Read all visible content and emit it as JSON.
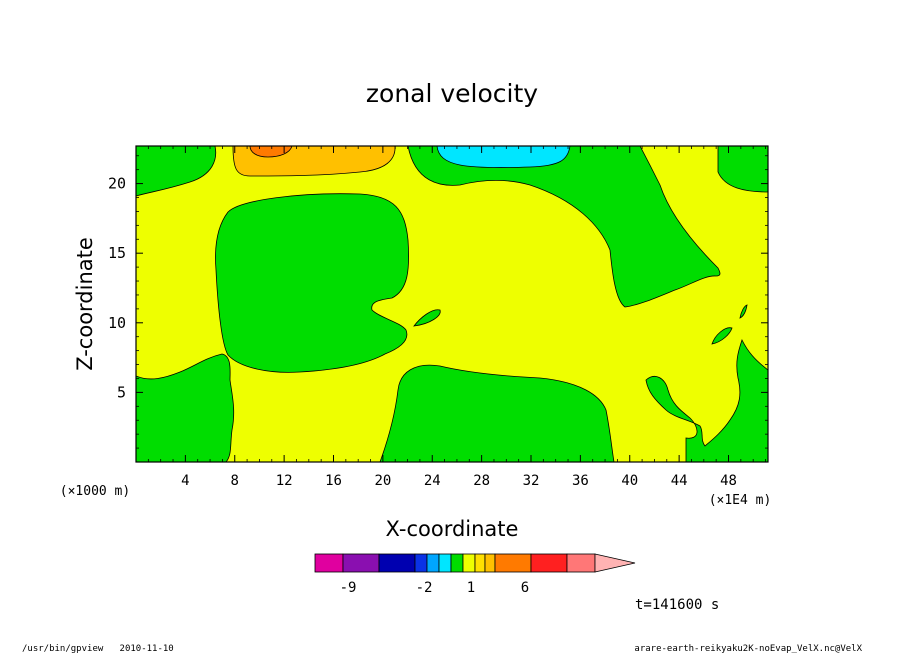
{
  "chart_data": {
    "type": "heatmap",
    "title": "zonal velocity",
    "xlabel": "X-coordinate",
    "ylabel": "Z-coordinate",
    "x_scale_note": "(×1E4 m)",
    "y_scale_note": "(×1000 m)",
    "x_ticks": [
      "4",
      "8",
      "12",
      "16",
      "20",
      "24",
      "28",
      "32",
      "36",
      "40",
      "44",
      "48"
    ],
    "y_ticks": [
      "5",
      "10",
      "15",
      "20"
    ],
    "xlim": [
      0,
      51.2
    ],
    "ylim": [
      0,
      22.7
    ],
    "time_label": "t=141600 s",
    "colorbar": {
      "tick_labels": [
        "-9",
        "-2",
        "1",
        "6"
      ],
      "colors": [
        "#e0009f",
        "#8a0fb0",
        "#0000b0",
        "#0a32e6",
        "#00a6ff",
        "#00e6ff",
        "#00dd00",
        "#eeff00",
        "#ffe000",
        "#ffc000",
        "#ff7a00",
        "#ff2020",
        "#ff7777",
        "#ffb3b3"
      ]
    },
    "contours": [
      {
        "level": "positive-small",
        "color": "#eeff00",
        "region": "background"
      },
      {
        "level": "negative-small",
        "color": "#00dd00",
        "region": "multiple cells"
      },
      {
        "level": "positive-mid",
        "color": "#ffc000",
        "region": "top x 8-20"
      },
      {
        "level": "positive-high",
        "color": "#ff7a00",
        "region": "top x 10-12"
      },
      {
        "level": "negative-mid",
        "color": "#00e6ff",
        "region": "top x 25-35"
      }
    ]
  },
  "footer": {
    "left": "/usr/bin/gpview   2010-11-10",
    "right": "arare-earth-reikyaku2K-noEvap_VelX.nc@VelX"
  }
}
